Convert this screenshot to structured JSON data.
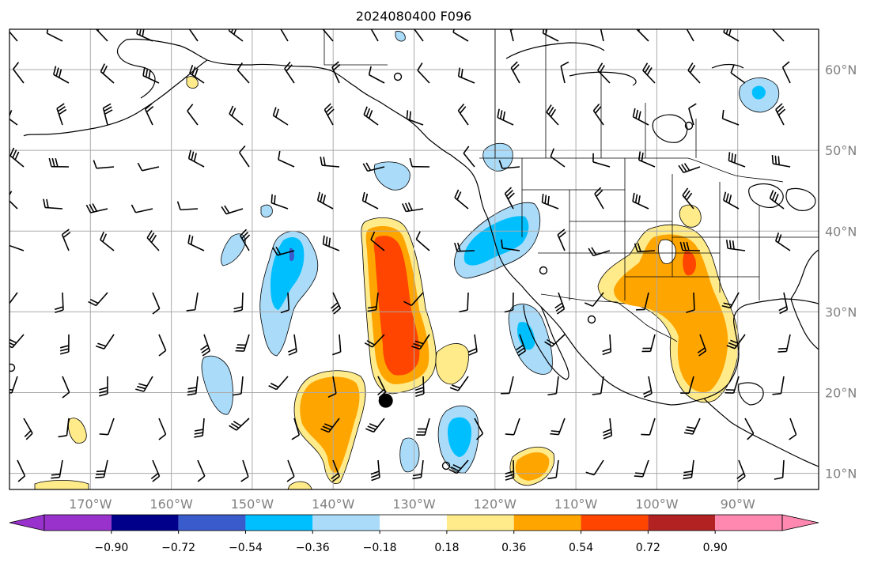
{
  "title": "2024080400 F096",
  "map": {
    "lon_range": [
      -180,
      -80
    ],
    "lat_range": [
      8,
      65
    ],
    "lon_ticks": [
      {
        "value": -170,
        "label": "170°W"
      },
      {
        "value": -160,
        "label": "160°W"
      },
      {
        "value": -150,
        "label": "150°W"
      },
      {
        "value": -140,
        "label": "140°W"
      },
      {
        "value": -130,
        "label": "130°W"
      },
      {
        "value": -120,
        "label": "120°W"
      },
      {
        "value": -110,
        "label": "110°W"
      },
      {
        "value": -100,
        "label": "100°W"
      },
      {
        "value": -90,
        "label": "90°W"
      }
    ],
    "lat_ticks": [
      {
        "value": 60,
        "label": "60°N"
      },
      {
        "value": 50,
        "label": "50°N"
      },
      {
        "value": 40,
        "label": "40°N"
      },
      {
        "value": 30,
        "label": "30°N"
      },
      {
        "value": 20,
        "label": "20°N"
      },
      {
        "value": 10,
        "label": "10°N"
      }
    ],
    "gridlines": true,
    "marker": {
      "name": "storm-center",
      "lon": -133.5,
      "lat": 19
    }
  },
  "colorbar": {
    "levels": [
      -0.9,
      -0.72,
      -0.54,
      -0.36,
      -0.18,
      0.18,
      0.36,
      0.54,
      0.72,
      0.9
    ],
    "labels": [
      "−0.90",
      "−0.72",
      "−0.54",
      "−0.36",
      "−0.18",
      "0.18",
      "0.36",
      "0.54",
      "0.72",
      "0.90"
    ],
    "colors": [
      "#9932cc",
      "#00008b",
      "#3a5bcc",
      "#00bfff",
      "#aadcfa",
      "#ffffff",
      "#ffeb8a",
      "#ffa500",
      "#ff4500",
      "#b22222",
      "#ff88b0"
    ]
  },
  "colors": {
    "light_blue": "#aadcfa",
    "blue": "#00bfff",
    "mid_blue": "#3a5bcc",
    "yellow": "#ffeb8a",
    "orange": "#ffa500",
    "red_orange": "#ff4500",
    "grid": "#aaaaaa",
    "tick_label": "#808080"
  }
}
